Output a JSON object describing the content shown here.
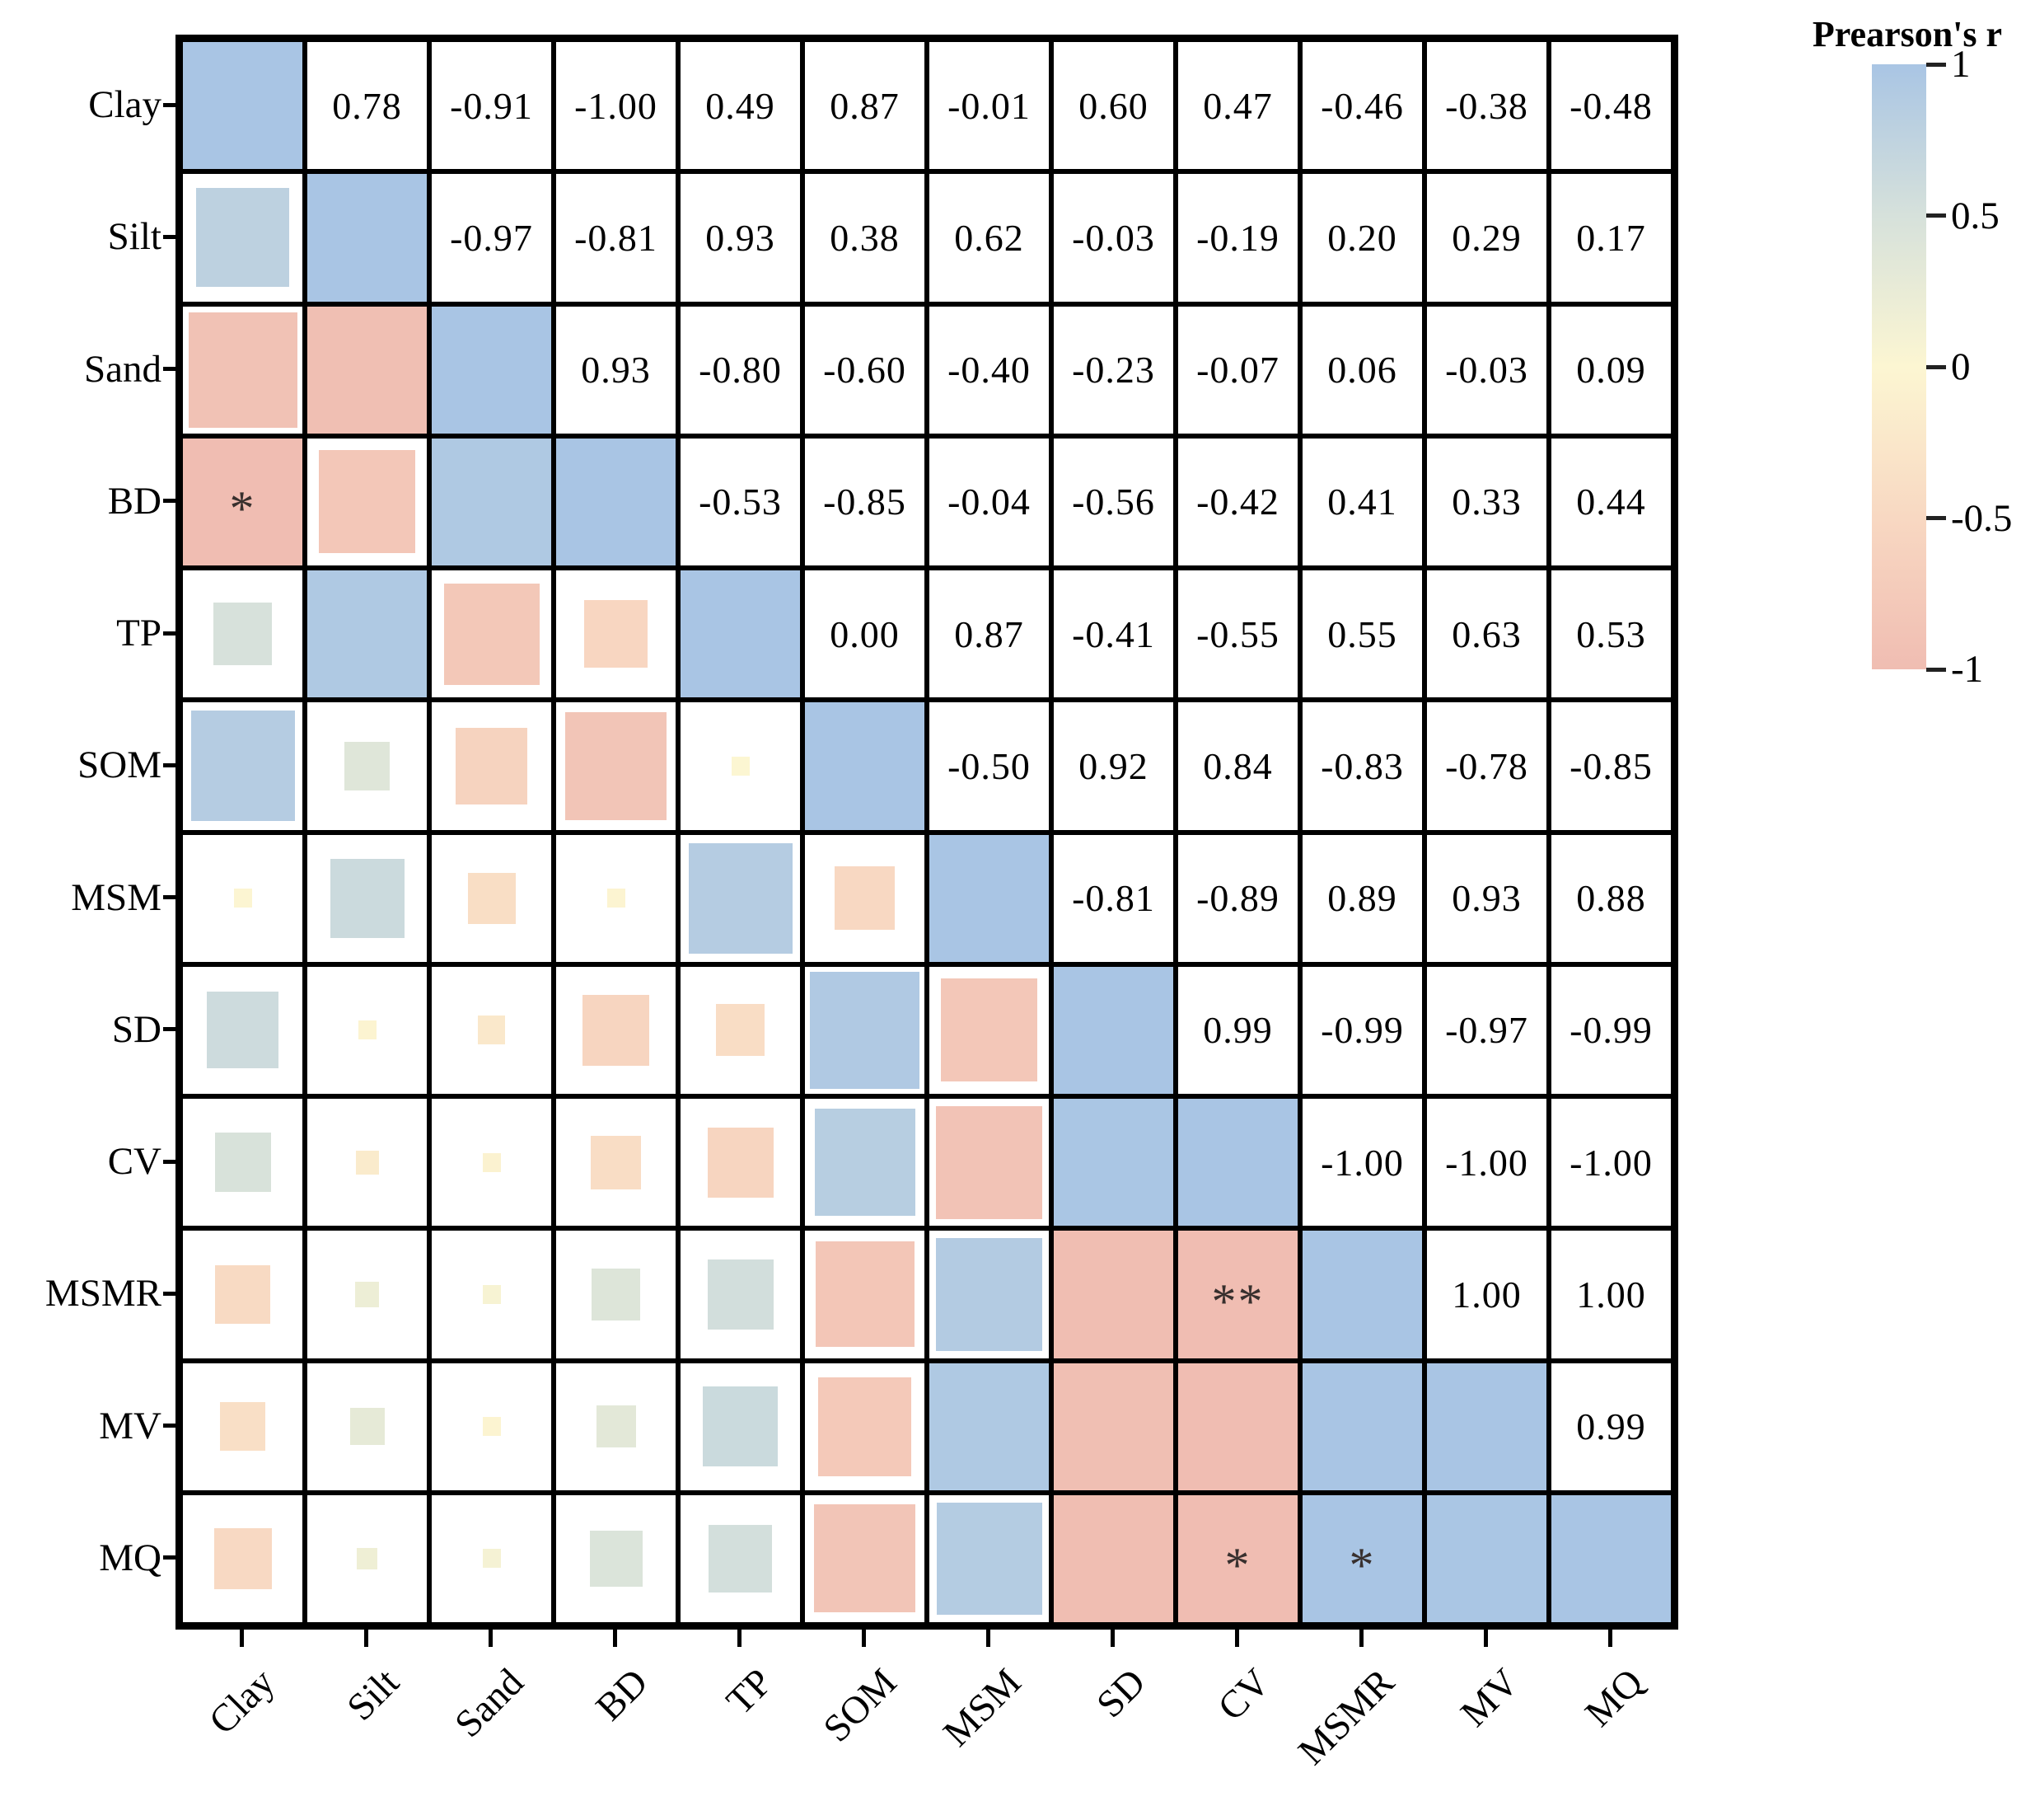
{
  "chart_data": {
    "type": "heatmap",
    "title": "",
    "description": "Pearson correlation matrix: upper triangle shows r values as numbers, lower triangle shows squares sized by |r| and colored by r, diagonal fully filled (r = 1).",
    "variables": [
      "Clay",
      "Silt",
      "Sand",
      "BD",
      "TP",
      "SOM",
      "MSM",
      "SD",
      "CV",
      "MSMR",
      "MV",
      "MQ"
    ],
    "matrix": [
      [
        1.0,
        0.78,
        -0.91,
        -1.0,
        0.49,
        0.87,
        -0.01,
        0.6,
        0.47,
        -0.46,
        -0.38,
        -0.48
      ],
      [
        0.78,
        1.0,
        -0.97,
        -0.81,
        0.93,
        0.38,
        0.62,
        -0.03,
        -0.19,
        0.2,
        0.29,
        0.17
      ],
      [
        -0.91,
        -0.97,
        1.0,
        0.93,
        -0.8,
        -0.6,
        -0.4,
        -0.23,
        -0.07,
        0.06,
        -0.03,
        0.09
      ],
      [
        -1.0,
        -0.81,
        0.93,
        1.0,
        -0.53,
        -0.85,
        -0.04,
        -0.56,
        -0.42,
        0.41,
        0.33,
        0.44
      ],
      [
        0.49,
        0.93,
        -0.8,
        -0.53,
        1.0,
        0.0,
        0.87,
        -0.41,
        -0.55,
        0.55,
        0.63,
        0.53
      ],
      [
        0.87,
        0.38,
        -0.6,
        -0.85,
        0.0,
        1.0,
        -0.5,
        0.92,
        0.84,
        -0.83,
        -0.78,
        -0.85
      ],
      [
        -0.01,
        0.62,
        -0.4,
        -0.04,
        0.87,
        -0.5,
        1.0,
        -0.81,
        -0.89,
        0.89,
        0.93,
        0.88
      ],
      [
        0.6,
        -0.03,
        -0.23,
        -0.56,
        -0.41,
        0.92,
        -0.81,
        1.0,
        0.99,
        -0.99,
        -0.97,
        -0.99
      ],
      [
        0.47,
        -0.19,
        -0.07,
        -0.42,
        -0.55,
        0.84,
        -0.89,
        0.99,
        1.0,
        -1.0,
        -1.0,
        -1.0
      ],
      [
        -0.46,
        0.2,
        0.06,
        0.41,
        0.55,
        -0.83,
        0.89,
        -0.99,
        -1.0,
        1.0,
        1.0,
        1.0
      ],
      [
        -0.38,
        0.29,
        -0.03,
        0.33,
        0.63,
        -0.78,
        0.93,
        -0.97,
        -1.0,
        1.0,
        1.0,
        0.99
      ],
      [
        -0.48,
        0.17,
        0.09,
        0.44,
        0.53,
        -0.85,
        0.88,
        -0.99,
        -1.0,
        1.0,
        0.99,
        1.0
      ]
    ],
    "significance": [
      {
        "row": "BD",
        "col": "Clay",
        "label": "*"
      },
      {
        "row": "MSMR",
        "col": "CV",
        "label": "**"
      },
      {
        "row": "MQ",
        "col": "CV",
        "label": "*"
      },
      {
        "row": "MQ",
        "col": "MSMR",
        "label": "*"
      }
    ],
    "colorbar": {
      "title": "Prearson's r",
      "ticks": [
        "1",
        "0.5",
        "0",
        "-0.5",
        "-1"
      ],
      "range_top": 1,
      "range_bottom": -1,
      "stops": [
        {
          "r": -1.0,
          "color": "#f0bdb2"
        },
        {
          "r": -0.5,
          "color": "#f8d8c2"
        },
        {
          "r": 0.0,
          "color": "#fcf6d2"
        },
        {
          "r": 0.5,
          "color": "#d6e1db"
        },
        {
          "r": 1.0,
          "color": "#a9c5e4"
        }
      ]
    },
    "layout": {
      "grid_on": true,
      "legend_position": "right",
      "upper_triangle": "numbers",
      "lower_triangle": "squares",
      "diagonal": "filled"
    }
  }
}
